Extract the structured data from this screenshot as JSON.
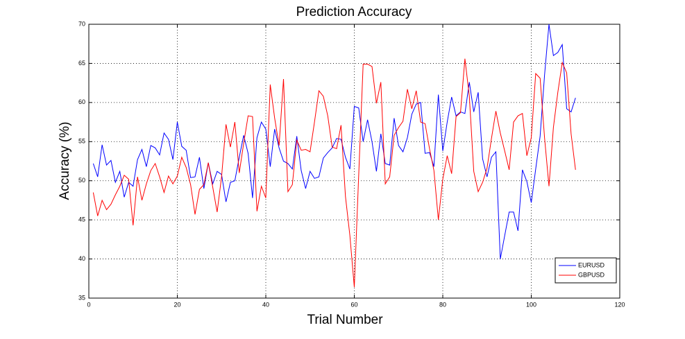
{
  "chart_data": {
    "type": "line",
    "title": "Prediction Accuracy",
    "xlabel": "Trial Number",
    "ylabel": "Accuracy (%)",
    "x": [
      1,
      2,
      3,
      4,
      5,
      6,
      7,
      8,
      9,
      10,
      11,
      12,
      13,
      14,
      15,
      16,
      17,
      18,
      19,
      20,
      21,
      22,
      23,
      24,
      25,
      26,
      27,
      28,
      29,
      30,
      31,
      32,
      33,
      34,
      35,
      36,
      37,
      38,
      39,
      40,
      41,
      42,
      43,
      44,
      45,
      46,
      47,
      48,
      49,
      50,
      51,
      52,
      53,
      54,
      55,
      56,
      57,
      58,
      59,
      60,
      61,
      62,
      63,
      64,
      65,
      66,
      67,
      68,
      69,
      70,
      71,
      72,
      73,
      74,
      75,
      76,
      77,
      78,
      79,
      80,
      81,
      82,
      83,
      84,
      85,
      86,
      87,
      88,
      89,
      90,
      91,
      92,
      93,
      94,
      95,
      96,
      97,
      98,
      99,
      100,
      101,
      102,
      103,
      104,
      105,
      106,
      107,
      108,
      109,
      110
    ],
    "series": [
      {
        "name": "EURUSD",
        "color": "#0000ff",
        "values": [
          52.2,
          50.5,
          54.6,
          52,
          52.6,
          49.8,
          51.2,
          47.9,
          49.8,
          49.3,
          52.7,
          54,
          51.8,
          54.5,
          54.2,
          53.3,
          56.1,
          55.3,
          52.7,
          57.5,
          54.4,
          53.9,
          50.4,
          50.5,
          53,
          49,
          52.3,
          49.6,
          51.2,
          50.8,
          47.3,
          49.8,
          50,
          53,
          55.8,
          53.5,
          47.8,
          55.5,
          57.5,
          56.6,
          51.8,
          56.6,
          54.2,
          52.5,
          52.2,
          51.5,
          55.7,
          51.3,
          49,
          51.2,
          50.3,
          50.5,
          52.9,
          53.6,
          54.2,
          55.4,
          55.3,
          53,
          51.5,
          59.5,
          59.3,
          55,
          57.8,
          55,
          51.2,
          56,
          52.2,
          52,
          58,
          54.5,
          53.7,
          55.5,
          58.5,
          59.8,
          60,
          53.5,
          53.6,
          51.8,
          61,
          53.8,
          57.5,
          60.7,
          58.3,
          58.8,
          58.6,
          62.6,
          58.8,
          61.3,
          52.8,
          50.5,
          53,
          53.7,
          40,
          43,
          46,
          46,
          43.6,
          51.4,
          49.9,
          47.2,
          51.5,
          55.7,
          63.5,
          70,
          66,
          66.4,
          67.4,
          59.2,
          58.8,
          60.6
        ]
      },
      {
        "name": "GBPUSD",
        "color": "#ff0000",
        "values": [
          48.5,
          45.5,
          47.5,
          46.3,
          47,
          48.2,
          49.3,
          50.7,
          50.2,
          44.3,
          50.5,
          47.5,
          49.6,
          51.3,
          52.2,
          50.5,
          48.5,
          50.6,
          49.6,
          50.6,
          53,
          51.7,
          49.5,
          45.7,
          48.9,
          49.5,
          52.3,
          49.2,
          46,
          50.5,
          57.2,
          54.3,
          57.5,
          51,
          54.8,
          58.3,
          58.2,
          46.1,
          49.3,
          47.8,
          62.3,
          58,
          54.5,
          63,
          48.6,
          49.5,
          55.2,
          53.9,
          54,
          53.7,
          57.5,
          61.5,
          60.8,
          58.3,
          54.3,
          54.1,
          57.1,
          48,
          43,
          36.4,
          50.8,
          64.9,
          64.9,
          64.6,
          59.9,
          62.6,
          49.6,
          50.5,
          55.8,
          56.8,
          57.6,
          61.7,
          59.2,
          61.5,
          57.5,
          57.3,
          54.1,
          51.3,
          45,
          50.2,
          53.2,
          50.9,
          58.2,
          58.7,
          65.6,
          60.8,
          51.2,
          48.6,
          49.8,
          51.6,
          55.4,
          58.9,
          56.1,
          53.8,
          51.4,
          57.5,
          58.3,
          58.6,
          53.2,
          55.5,
          63.7,
          63.1,
          55.5,
          49.3,
          56.8,
          61.3,
          65.1,
          63.8,
          56,
          51.4
        ]
      }
    ],
    "xlim": [
      0,
      120
    ],
    "xticks": [
      0,
      20,
      40,
      60,
      80,
      100,
      120
    ],
    "ylim": [
      35,
      70
    ],
    "yticks": [
      35,
      40,
      45,
      50,
      55,
      60,
      65,
      70
    ],
    "grid": true,
    "legend": "lower right"
  }
}
